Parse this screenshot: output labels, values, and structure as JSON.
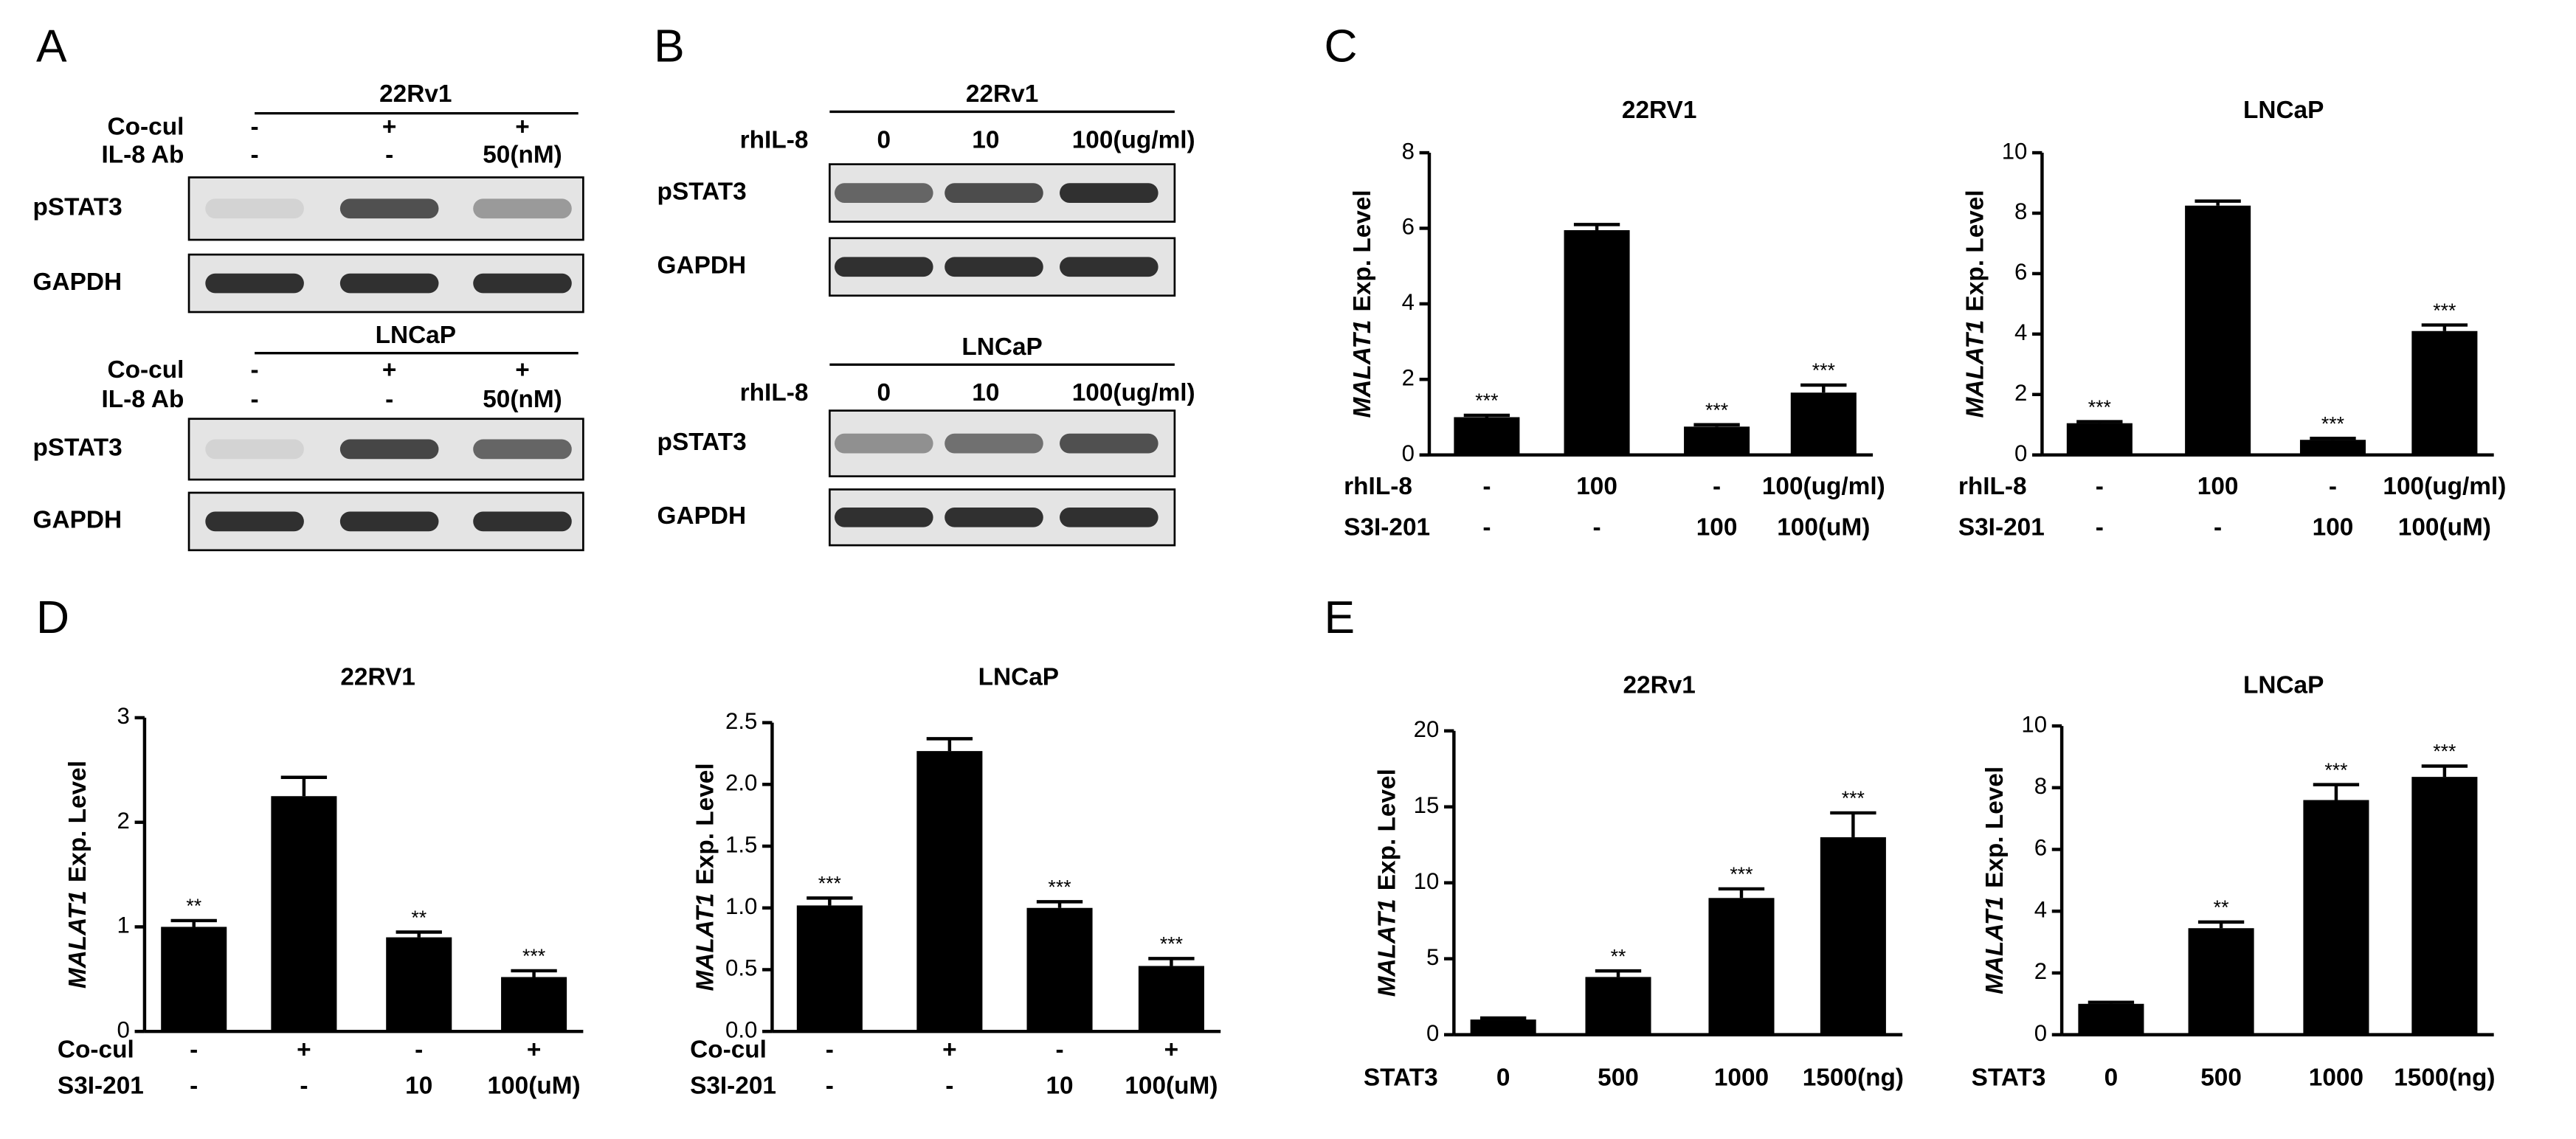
{
  "panel_labels": [
    "A",
    "B",
    "C",
    "D",
    "E"
  ],
  "blots": [
    {
      "groups": [
        {
          "cell": "22Rv1",
          "rows": [
            {
              "name": "Co-cul",
              "labels": [
                "-",
                "+",
                "+"
              ]
            },
            {
              "name": "IL-8 Ab",
              "labels": [
                "-",
                "-",
                "50(nM)"
              ]
            }
          ],
          "bands": [
            "pSTAT3",
            "GAPDH"
          ]
        },
        {
          "cell": "LNCaP",
          "rows": [
            {
              "name": "Co-cul",
              "labels": [
                "-",
                "+",
                "+"
              ]
            },
            {
              "name": "IL-8 Ab",
              "labels": [
                "-",
                "-",
                "50(nM)"
              ]
            }
          ],
          "bands": [
            "pSTAT3",
            "GAPDH"
          ]
        }
      ]
    },
    {
      "groups": [
        {
          "cell": "22Rv1",
          "rows": [
            {
              "name": "rhIL-8",
              "labels": [
                "0",
                "10",
                "100(ug/ml)"
              ]
            }
          ],
          "bands": [
            "pSTAT3",
            "GAPDH"
          ]
        },
        {
          "cell": "LNCaP",
          "rows": [
            {
              "name": "rhIL-8",
              "labels": [
                "0",
                "10",
                "100(ug/ml)"
              ]
            }
          ],
          "bands": [
            "pSTAT3",
            "GAPDH"
          ]
        }
      ]
    }
  ],
  "chart_data": [
    {
      "type": "bar",
      "title": "22RV1",
      "ylabel_gene": "MALAT1",
      "ylabel": "Exp. Level",
      "color": "#000000",
      "values": [
        1,
        5.95,
        0.75,
        1.65
      ],
      "errors": [
        0.05,
        0.15,
        0.05,
        0.2
      ],
      "annotations": [
        "***",
        null,
        "***",
        "***"
      ],
      "rows": [
        {
          "name": "rhIL-8",
          "labels": [
            "-",
            "100",
            "-",
            "100(ug/ml)"
          ]
        },
        {
          "name": "S3I-201",
          "labels": [
            "-",
            "-",
            "100",
            "100(uM)"
          ]
        }
      ],
      "ylim": [
        0,
        8
      ],
      "yticks": [
        0,
        2,
        4,
        6,
        8
      ]
    },
    {
      "type": "bar",
      "title": "LNCaP",
      "ylabel_gene": "MALAT1",
      "ylabel": "Exp. Level",
      "color": "#000000",
      "values": [
        1.05,
        8.25,
        0.5,
        4.1
      ],
      "errors": [
        0.05,
        0.15,
        0.05,
        0.2
      ],
      "annotations": [
        "***",
        null,
        "***",
        "***"
      ],
      "rows": [
        {
          "name": "rhIL-8",
          "labels": [
            "-",
            "100",
            "-",
            "100(ug/ml)"
          ]
        },
        {
          "name": "S3I-201",
          "labels": [
            "-",
            "-",
            "100",
            "100(uM)"
          ]
        }
      ],
      "ylim": [
        0,
        10
      ],
      "yticks": [
        0,
        2,
        4,
        6,
        8,
        10
      ]
    },
    {
      "type": "bar",
      "title": "22RV1",
      "ylabel_gene": "MALAT1",
      "ylabel": "Exp. Level",
      "color": "#000000",
      "values": [
        1.0,
        2.25,
        0.9,
        0.52
      ],
      "errors": [
        0.06,
        0.18,
        0.05,
        0.06
      ],
      "annotations": [
        "**",
        null,
        "**",
        "***"
      ],
      "rows": [
        {
          "name": "Co-cul",
          "labels": [
            "-",
            "+",
            "-",
            "+"
          ]
        },
        {
          "name": "S3I-201",
          "labels": [
            "-",
            "-",
            "10",
            "100(uM)"
          ]
        }
      ],
      "ylim": [
        0,
        3
      ],
      "yticks": [
        0,
        1,
        2,
        3
      ]
    },
    {
      "type": "bar",
      "title": "LNCaP",
      "ylabel_gene": "MALAT1",
      "ylabel": "Exp. Level",
      "color": "#000000",
      "values": [
        1.02,
        2.27,
        1.0,
        0.53
      ],
      "errors": [
        0.06,
        0.1,
        0.05,
        0.06
      ],
      "annotations": [
        "***",
        null,
        "***",
        "***"
      ],
      "rows": [
        {
          "name": "Co-cul",
          "labels": [
            "-",
            "+",
            "-",
            "+"
          ]
        },
        {
          "name": "S3I-201",
          "labels": [
            "-",
            "-",
            "10",
            "100(uM)"
          ]
        }
      ],
      "ylim": [
        0,
        2.5
      ],
      "yticks": [
        {
          "value": 0,
          "label": "0.0"
        },
        0.5,
        {
          "value": 1,
          "label": "1.0"
        },
        1.5,
        {
          "value": 2,
          "label": "2.0"
        },
        2.5
      ]
    },
    {
      "type": "bar",
      "title": "22Rv1",
      "ylabel_gene": "MALAT1",
      "ylabel": "Exp. Level",
      "color": "#000000",
      "values": [
        1,
        3.8,
        9,
        13
      ],
      "errors": [
        0.1,
        0.4,
        0.6,
        1.6
      ],
      "annotations": [
        null,
        "**",
        "***",
        "***"
      ],
      "rows": [
        {
          "name": "STAT3",
          "labels": [
            "0",
            "500",
            "1000",
            "1500(ng)"
          ]
        }
      ],
      "ylim": [
        0,
        20
      ],
      "yticks": [
        0,
        5,
        10,
        15,
        20
      ]
    },
    {
      "type": "bar",
      "title": "LNCaP",
      "ylabel_gene": "MALAT1",
      "ylabel": "Exp. Level",
      "color": "#000000",
      "values": [
        1,
        3.45,
        7.6,
        8.35
      ],
      "errors": [
        0.05,
        0.2,
        0.5,
        0.35
      ],
      "annotations": [
        null,
        "**",
        "***",
        "***"
      ],
      "rows": [
        {
          "name": "STAT3",
          "labels": [
            "0",
            "500",
            "1000",
            "1500(ng)"
          ]
        }
      ],
      "ylim": [
        0,
        10
      ],
      "yticks": [
        0,
        2,
        4,
        6,
        8,
        10
      ]
    }
  ]
}
